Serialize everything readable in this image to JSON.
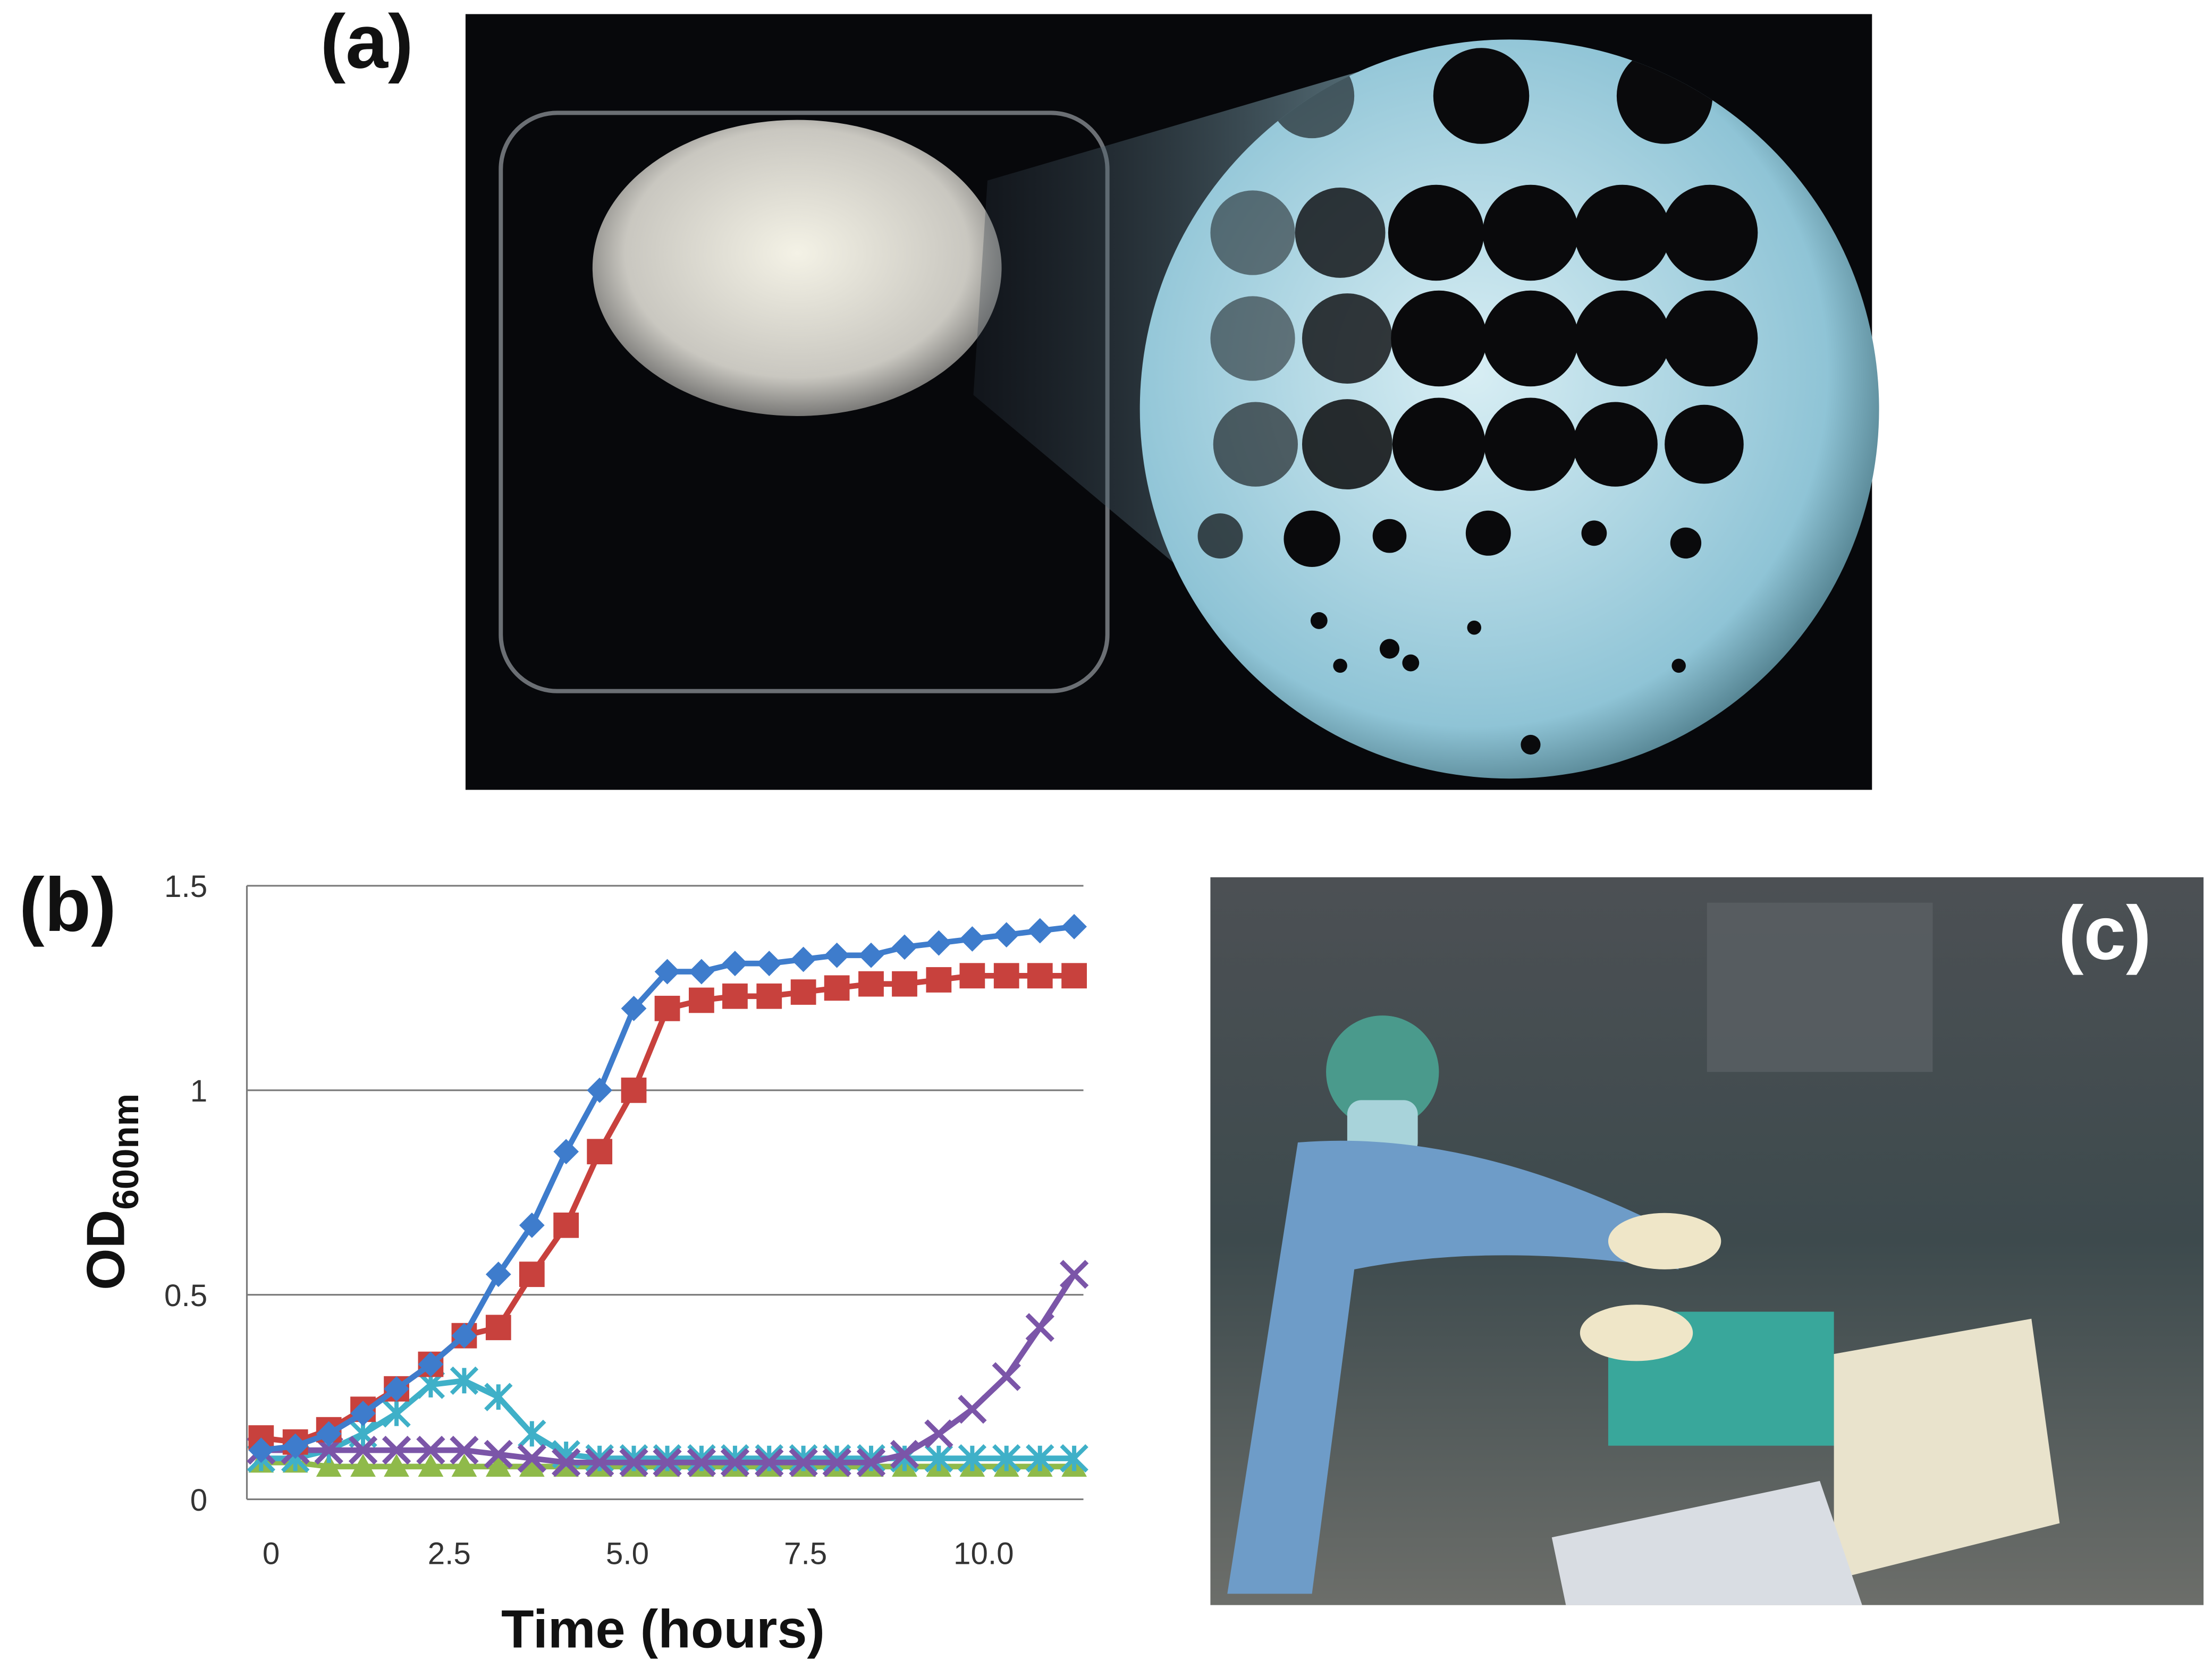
{
  "panel_labels": [
    "(a)",
    "(b)",
    "(c)"
  ],
  "chart_data": {
    "type": "line",
    "xlabel": "Time (hours)",
    "ylabel": {
      "text": "OD",
      "subscript": "600nm"
    },
    "x": [
      -0.14,
      0.34,
      0.81,
      1.29,
      1.76,
      2.24,
      2.71,
      3.19,
      3.66,
      4.14,
      4.61,
      5.09,
      5.56,
      6.04,
      6.51,
      6.99,
      7.47,
      7.94,
      8.42,
      8.89,
      9.37,
      9.84,
      10.32,
      10.79,
      11.27
    ],
    "series": [
      {
        "color": "#3e7ccc",
        "marker": "diamond",
        "values": [
          0.12,
          0.13,
          0.16,
          0.21,
          0.27,
          0.33,
          0.4,
          0.55,
          0.67,
          0.85,
          1.0,
          1.2,
          1.29,
          1.29,
          1.31,
          1.31,
          1.32,
          1.33,
          1.33,
          1.35,
          1.36,
          1.37,
          1.38,
          1.39,
          1.4
        ]
      },
      {
        "color": "#c8413d",
        "marker": "square",
        "values": [
          0.15,
          0.14,
          0.17,
          0.22,
          0.27,
          0.33,
          0.4,
          0.42,
          0.55,
          0.67,
          0.85,
          1.0,
          1.2,
          1.22,
          1.23,
          1.23,
          1.24,
          1.25,
          1.26,
          1.26,
          1.27,
          1.28,
          1.28,
          1.28,
          1.28
        ]
      },
      {
        "color": "#8fba4a",
        "marker": "triangle",
        "values": [
          0.09,
          0.09,
          0.08,
          0.08,
          0.08,
          0.08,
          0.08,
          0.08,
          0.08,
          0.08,
          0.08,
          0.08,
          0.08,
          0.08,
          0.08,
          0.08,
          0.08,
          0.08,
          0.08,
          0.08,
          0.08,
          0.08,
          0.08,
          0.08,
          0.08
        ]
      },
      {
        "color": "#3fb0c8",
        "marker": "star",
        "values": [
          0.1,
          0.1,
          0.12,
          0.16,
          0.21,
          0.28,
          0.29,
          0.25,
          0.16,
          0.11,
          0.1,
          0.1,
          0.1,
          0.1,
          0.1,
          0.1,
          0.1,
          0.1,
          0.1,
          0.1,
          0.1,
          0.1,
          0.1,
          0.1,
          0.1
        ]
      },
      {
        "color": "#7b55a8",
        "marker": "x",
        "values": [
          0.12,
          0.12,
          0.12,
          0.12,
          0.12,
          0.12,
          0.12,
          0.11,
          0.1,
          0.09,
          0.09,
          0.09,
          0.09,
          0.09,
          0.09,
          0.09,
          0.09,
          0.09,
          0.09,
          0.11,
          0.16,
          0.22,
          0.3,
          0.42,
          0.55
        ]
      }
    ],
    "xlim": [
      -0.34,
      11.4
    ],
    "ylim": [
      0,
      1.5
    ],
    "xticks": [
      0,
      2.5,
      {
        "value": 5,
        "label": "5.0"
      },
      7.5,
      {
        "value": 10,
        "label": "10.0"
      }
    ],
    "yticks": [
      0,
      0.5,
      1,
      1.5
    ],
    "grid": true
  }
}
